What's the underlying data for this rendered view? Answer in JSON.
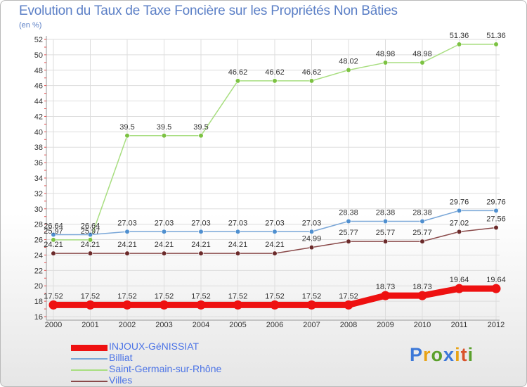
{
  "title": "Evolution du Taux de Taxe Foncière sur les Propriétés Non Bâties",
  "subtitle": "(en %)",
  "brand": {
    "letters": [
      "P",
      "r",
      "o",
      "x",
      "i",
      "t",
      "i"
    ],
    "colors": [
      "#3c78d8",
      "#e8a317",
      "#5aa02c",
      "#3c78d8",
      "#e8a317",
      "#d9532b",
      "#5aa02c"
    ]
  },
  "chart_data": {
    "type": "line",
    "title": "Evolution du Taux de Taxe Foncière sur les Propriétés Non Bâties",
    "ylabel": "(en %)",
    "x": [
      "2000",
      "2001",
      "2002",
      "2003",
      "2004",
      "2005",
      "2006",
      "2007",
      "2008",
      "2009",
      "2010",
      "2011",
      "2012"
    ],
    "ylim": [
      16,
      52
    ],
    "yticks": [
      16,
      18,
      20,
      22,
      24,
      26,
      28,
      30,
      32,
      34,
      36,
      38,
      40,
      42,
      44,
      46,
      48,
      50,
      52
    ],
    "series": [
      {
        "name": "INJOUX-GéNISSIAT",
        "color": "#ee1111",
        "width": 9,
        "values": [
          17.52,
          17.52,
          17.52,
          17.52,
          17.52,
          17.52,
          17.52,
          17.52,
          17.52,
          18.73,
          18.73,
          19.64,
          19.64
        ],
        "labels": [
          "17.52",
          "17.52",
          "17.52",
          "17.52",
          "17.52",
          "17.52",
          "17.52",
          "17.52",
          "17.52",
          "18.73",
          "18.73",
          "19.64",
          "19.64"
        ]
      },
      {
        "name": "Billiat",
        "color": "#7aa7d8",
        "marker": "#4f8fcf",
        "width": 1.5,
        "values": [
          26.64,
          26.64,
          27.03,
          27.03,
          27.03,
          27.03,
          27.03,
          27.03,
          28.38,
          28.38,
          28.38,
          29.76,
          29.76
        ],
        "labels": [
          "26.64",
          "26.64",
          "27.03",
          "27.03",
          "27.03",
          "27.03",
          "27.03",
          "27.03",
          "28.38",
          "28.38",
          "28.38",
          "29.76",
          "29.76"
        ]
      },
      {
        "name": "Saint-Germain-sur-Rhône",
        "color": "#a8de80",
        "marker": "#7cc242",
        "width": 1.5,
        "values": [
          25.97,
          25.97,
          39.5,
          39.5,
          39.5,
          46.62,
          46.62,
          46.62,
          48.02,
          48.98,
          48.98,
          51.36,
          51.36
        ],
        "labels": [
          "25.97",
          "25.97",
          "39.5",
          "39.5",
          "39.5",
          "46.62",
          "46.62",
          "46.62",
          "48.02",
          "48.98",
          "48.98",
          "51.36",
          "51.36"
        ]
      },
      {
        "name": "Villes",
        "color": "#8a4a4a",
        "marker": "#6b2a2a",
        "width": 1.5,
        "values": [
          24.21,
          24.21,
          24.21,
          24.21,
          24.21,
          24.21,
          24.21,
          24.99,
          25.77,
          25.77,
          25.77,
          27.02,
          27.56
        ],
        "labels": [
          "24.21",
          "24.21",
          "24.21",
          "24.21",
          "24.21",
          "24.21",
          "24.21",
          "24.99",
          "25.77",
          "25.77",
          "25.77",
          "27.02",
          "27.56"
        ]
      }
    ]
  }
}
